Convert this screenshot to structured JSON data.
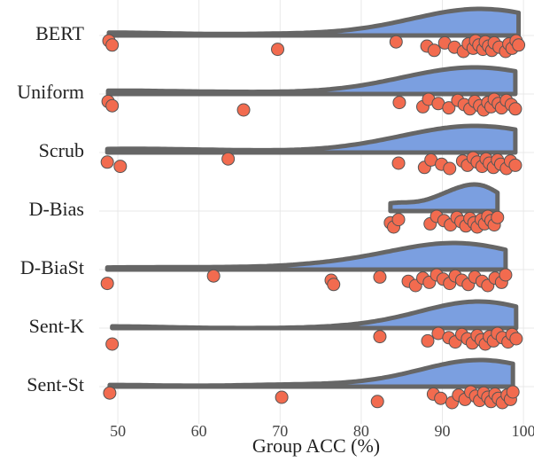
{
  "chart_data": {
    "type": "raincloud",
    "x_label": "Group ACC (%)",
    "categories": [
      "BERT",
      "Uniform",
      "Scrub",
      "D-Bias",
      "D-BiaSt",
      "Sent-K",
      "Sent-St"
    ],
    "values": [
      [
        48.9,
        49.3,
        69.7,
        84.3,
        88.1,
        89.0,
        90.3,
        91.5,
        92.6,
        93.2,
        93.8,
        94.1,
        94.5,
        95.0,
        95.3,
        95.7,
        96.1,
        96.4,
        97.0,
        97.8,
        98.2,
        98.6,
        99.1,
        99.4
      ],
      [
        48.8,
        49.3,
        65.5,
        84.7,
        87.6,
        88.3,
        89.5,
        90.8,
        91.9,
        92.7,
        93.4,
        94.0,
        94.6,
        95.1,
        95.6,
        96.0,
        96.4,
        96.9,
        97.3,
        97.9,
        98.5,
        99.0
      ],
      [
        48.7,
        50.3,
        63.6,
        84.6,
        87.8,
        88.6,
        89.9,
        90.9,
        92.5,
        93.1,
        93.8,
        94.3,
        94.9,
        95.4,
        95.8,
        96.3,
        96.8,
        97.2,
        97.9,
        98.4,
        99.0
      ],
      [
        83.6,
        84.0,
        84.6,
        88.5,
        89.3,
        90.2,
        91.0,
        91.8,
        92.3,
        92.9,
        93.4,
        93.9,
        94.3,
        94.8,
        95.2,
        95.6,
        96.0,
        96.4,
        96.8
      ],
      [
        48.7,
        61.8,
        76.3,
        76.6,
        82.3,
        85.8,
        86.7,
        87.6,
        88.4,
        89.3,
        90.1,
        90.9,
        91.6,
        92.4,
        93.2,
        94.0,
        94.9,
        95.6,
        96.5,
        97.3,
        97.8
      ],
      [
        49.3,
        82.3,
        88.2,
        89.5,
        90.8,
        91.6,
        92.4,
        93.1,
        93.7,
        94.3,
        94.8,
        95.3,
        95.8,
        96.3,
        96.8,
        97.4,
        98.1,
        98.6,
        99.1
      ],
      [
        49.0,
        70.2,
        82.0,
        88.9,
        89.8,
        91.2,
        92.0,
        92.8,
        93.5,
        94.1,
        94.6,
        95.1,
        95.6,
        96.0,
        96.5,
        96.9,
        97.4,
        98.0,
        98.4,
        98.7
      ]
    ],
    "color": "#f26b4f",
    "density_color": "#7b9fe0",
    "outline_color": "#666666",
    "xlim": [
      47.7,
      101.3
    ],
    "xticks": [
      50,
      60,
      70,
      80,
      90,
      100
    ],
    "grid": true
  }
}
